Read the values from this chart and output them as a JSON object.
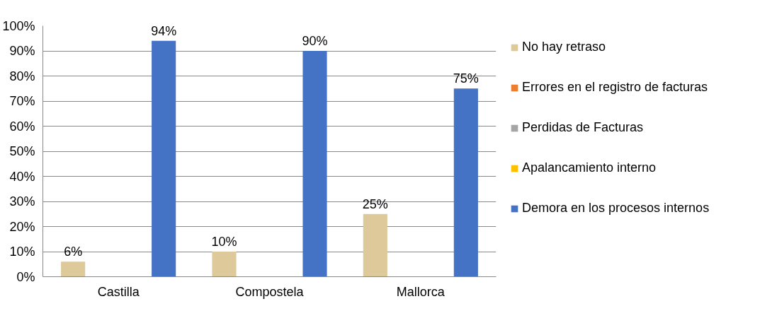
{
  "chart_data": {
    "type": "bar",
    "categories": [
      "Castilla",
      "Compostela",
      "Mallorca"
    ],
    "series": [
      {
        "name": "No hay retraso",
        "color": "#ddc99a",
        "values": [
          6,
          10,
          25
        ],
        "value_labels": [
          "6%",
          "10%",
          "25%"
        ]
      },
      {
        "name": "Errores en el registro de facturas",
        "color": "#ed7d31",
        "values": [
          0,
          0,
          0
        ],
        "value_labels": [
          null,
          null,
          null
        ]
      },
      {
        "name": "Perdidas de Facturas",
        "color": "#a5a5a5",
        "values": [
          0,
          0,
          0
        ],
        "value_labels": [
          null,
          null,
          null
        ]
      },
      {
        "name": "Apalancamiento interno",
        "color": "#ffc000",
        "values": [
          0,
          0,
          0
        ],
        "value_labels": [
          null,
          null,
          null
        ]
      },
      {
        "name": "Demora en los procesos internos",
        "color": "#4472c4",
        "values": [
          94,
          90,
          75
        ],
        "value_labels": [
          "94%",
          "90%",
          "75%"
        ]
      }
    ],
    "ylim": [
      0,
      100
    ],
    "yticks": [
      {
        "value": 0,
        "label": "0%"
      },
      {
        "value": 10,
        "label": "10%"
      },
      {
        "value": 20,
        "label": "20%"
      },
      {
        "value": 30,
        "label": "30%"
      },
      {
        "value": 40,
        "label": "40%"
      },
      {
        "value": 50,
        "label": "50%"
      },
      {
        "value": 60,
        "label": "60%"
      },
      {
        "value": 70,
        "label": "70%"
      },
      {
        "value": 80,
        "label": "80%"
      },
      {
        "value": 90,
        "label": "90%"
      },
      {
        "value": 100,
        "label": "100%"
      }
    ],
    "grid": "y",
    "legend": "right"
  }
}
